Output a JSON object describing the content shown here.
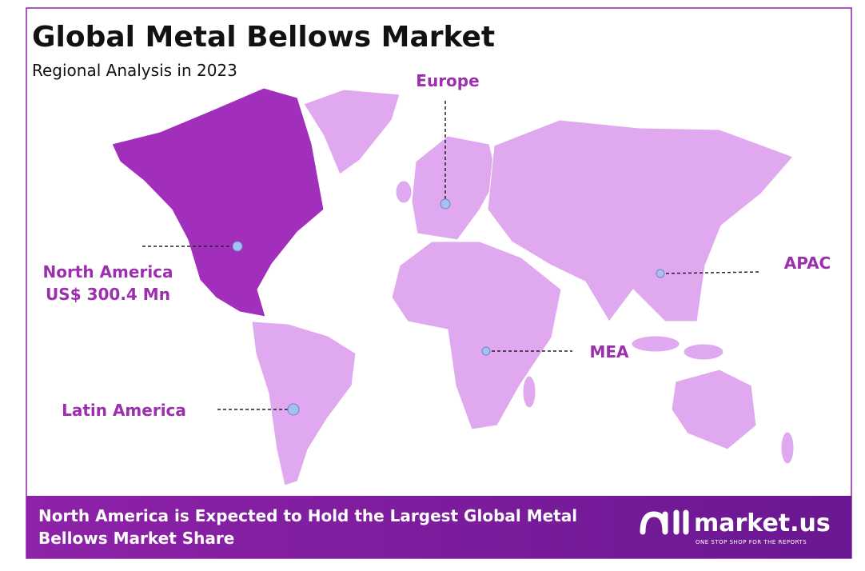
{
  "header": {
    "title": "Global Metal Bellows Market",
    "subtitle": "Regional Analysis in 2023"
  },
  "regions": [
    {
      "label": "North America",
      "value": "US$ 300.4 Mn"
    },
    {
      "label": "Europe"
    },
    {
      "label": "APAC"
    },
    {
      "label": "MEA"
    },
    {
      "label": "Latin America"
    }
  ],
  "footer": {
    "text": "North America is Expected to Hold the Largest Global Metal Bellows Market Share"
  },
  "logo": {
    "name": "market.us",
    "tagline": "ONE STOP SHOP FOR THE REPORTS"
  }
}
